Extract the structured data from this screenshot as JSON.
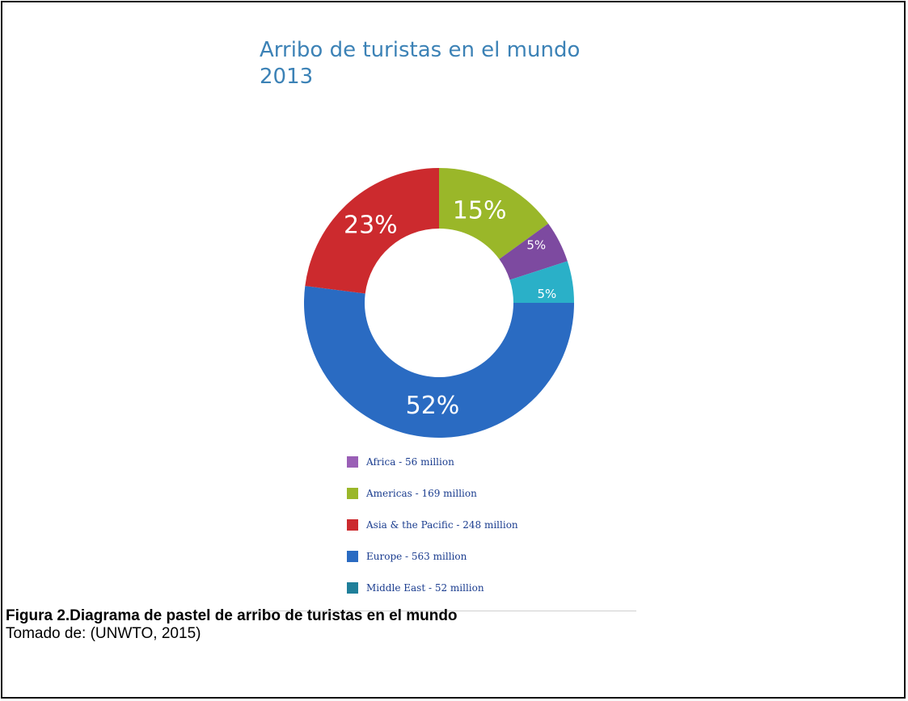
{
  "chart_data": {
    "type": "pie",
    "donut": true,
    "title": "Arribo de turistas  en el mundo\n2013",
    "slices": [
      {
        "name": "Americas",
        "percent": 15,
        "label": "15%",
        "color": "#9ab729"
      },
      {
        "name": "Africa",
        "percent": 5,
        "label": "5%",
        "color": "#7d4aa0"
      },
      {
        "name": "Middle East",
        "percent": 5,
        "label": "5%",
        "color": "#2ab0c8"
      },
      {
        "name": "Europe",
        "percent": 52,
        "label": "52%",
        "color": "#2a6bc2"
      },
      {
        "name": "Asia & the Pacific",
        "percent": 23,
        "label": "23%",
        "color": "#cc2a2e"
      }
    ],
    "legend": [
      {
        "text": "Africa - 56 million",
        "color": "#9a5fb6"
      },
      {
        "text": "Americas -  169 million",
        "color": "#9ab729"
      },
      {
        "text": "Asia & the Pacific - 248 million",
        "color": "#cc2a2e"
      },
      {
        "text": "Europe -  563 million",
        "color": "#2a6bc2"
      },
      {
        "text": "Middle East -  52 million",
        "color": "#1f7f9a"
      }
    ],
    "legend_placement": "bottom",
    "grid": false
  },
  "caption": {
    "title": "Figura 2.Diagrama de pastel de arribo de turistas en el mundo",
    "source": "Tomado de: (UNWTO, 2015)"
  }
}
